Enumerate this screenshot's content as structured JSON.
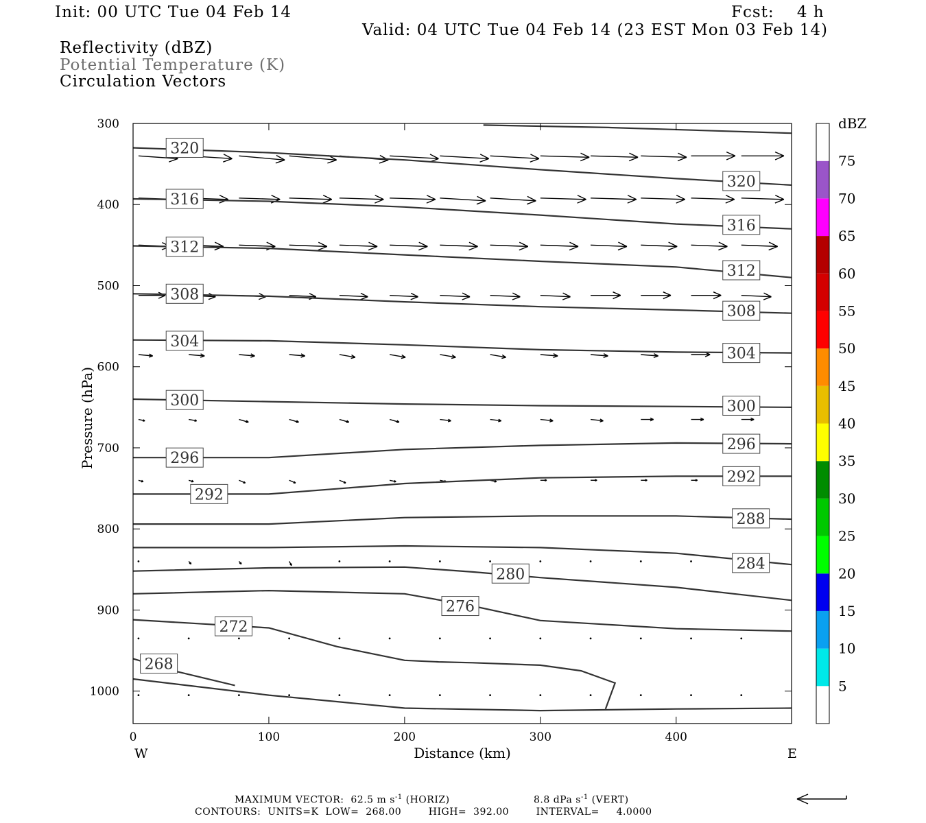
{
  "header": {
    "init": "Init: 00 UTC Tue 04 Feb 14",
    "fcst": "Fcst:    4 h",
    "valid": "Valid: 04 UTC Tue 04 Feb 14 (23 EST Mon 03 Feb 14)"
  },
  "legend_lines": [
    {
      "text": "Reflectivity (dBZ)",
      "color": "#000000"
    },
    {
      "text": "Potential Temperature (K)",
      "color": "#6e6e6e"
    },
    {
      "text": "Circulation Vectors",
      "color": "#000000"
    }
  ],
  "footer": {
    "max_vector_label": "MAXIMUM VECTOR:",
    "max_vector_horiz": "62.5 m s",
    "horiz_exp": "-1",
    "horiz_tag": "(HORIZ)",
    "max_vector_vert": "8.8 dPa s",
    "vert_exp": "-1",
    "vert_tag": "(VERT)",
    "contours": "CONTOURS:  UNITS=K  LOW=  268.00        HIGH=  392.00        INTERVAL=     4.0000"
  },
  "chart_data": {
    "type": "line",
    "title": "",
    "xlabel": "Distance (km)",
    "ylabel": "Pressure (hPa)",
    "xlim": [
      0,
      485
    ],
    "ylim": [
      300,
      1040
    ],
    "y_inverted": true,
    "x_ticks": [
      0,
      100,
      200,
      300,
      400
    ],
    "y_ticks": [
      300,
      400,
      500,
      600,
      700,
      800,
      900,
      1000
    ],
    "x_end_labels": {
      "left": "W",
      "right": "E"
    },
    "grid": false,
    "colorbar": {
      "unit": "dBZ",
      "levels": [
        5,
        10,
        15,
        20,
        25,
        30,
        35,
        40,
        45,
        50,
        55,
        60,
        65,
        70,
        75
      ],
      "colors": [
        "#ffffff",
        "#00e8e8",
        "#0aa0f0",
        "#0000f0",
        "#00ff00",
        "#00c800",
        "#008c00",
        "#ffff00",
        "#e8be00",
        "#ff8c00",
        "#ff0000",
        "#d40000",
        "#b40000",
        "#ff00ff",
        "#9a55c9",
        "#ffffff"
      ]
    },
    "series": [
      {
        "name": "320",
        "x": [
          0,
          100,
          200,
          300,
          400,
          485
        ],
        "y": [
          330,
          336,
          345,
          357,
          368,
          376
        ],
        "label_x": [
          38,
          448
        ],
        "label_y": [
          330,
          371
        ]
      },
      {
        "name": "316",
        "x": [
          0,
          100,
          200,
          300,
          400,
          485
        ],
        "y": [
          393,
          396,
          403,
          413,
          424,
          430
        ],
        "label_x": [
          38,
          448
        ],
        "label_y": [
          393,
          425
        ]
      },
      {
        "name": "312",
        "x": [
          0,
          100,
          200,
          300,
          400,
          485
        ],
        "y": [
          451,
          454,
          462,
          470,
          477,
          490
        ],
        "label_x": [
          38,
          448
        ],
        "label_y": [
          452,
          481
        ]
      },
      {
        "name": "308",
        "x": [
          0,
          100,
          200,
          300,
          400,
          485
        ],
        "y": [
          510,
          513,
          520,
          526,
          530,
          534
        ],
        "label_x": [
          38,
          448
        ],
        "label_y": [
          510,
          531
        ]
      },
      {
        "name": "304",
        "x": [
          0,
          100,
          200,
          300,
          400,
          485
        ],
        "y": [
          567,
          568,
          573,
          579,
          582,
          583
        ],
        "label_x": [
          38,
          448
        ],
        "label_y": [
          568,
          583
        ]
      },
      {
        "name": "300",
        "x": [
          0,
          100,
          200,
          300,
          400,
          485
        ],
        "y": [
          640,
          643,
          646,
          648,
          649,
          650
        ],
        "label_x": [
          38,
          448
        ],
        "label_y": [
          641,
          648
        ]
      },
      {
        "name": "296",
        "x": [
          0,
          100,
          200,
          300,
          400,
          485
        ],
        "y": [
          712,
          712,
          702,
          697,
          694,
          695
        ],
        "label_x": [
          38,
          448
        ],
        "label_y": [
          712,
          695
        ]
      },
      {
        "name": "292",
        "x": [
          0,
          100,
          200,
          300,
          400,
          485
        ],
        "y": [
          757,
          757,
          744,
          737,
          735,
          735
        ],
        "label_x": [
          56,
          448
        ],
        "label_y": [
          757,
          735
        ]
      },
      {
        "name": "288",
        "x": [
          0,
          100,
          200,
          300,
          400,
          485
        ],
        "y": [
          794,
          794,
          786,
          784,
          784,
          788
        ],
        "label_x": [
          455
        ],
        "label_y": [
          787
        ]
      },
      {
        "name": "284",
        "x": [
          0,
          100,
          200,
          300,
          400,
          485
        ],
        "y": [
          823,
          823,
          821,
          823,
          830,
          844
        ],
        "label_x": [
          455
        ],
        "label_y": [
          842
        ]
      },
      {
        "name": "280",
        "x": [
          0,
          100,
          200,
          250,
          300,
          400,
          485
        ],
        "y": [
          852,
          848,
          847,
          853,
          860,
          872,
          888
        ],
        "label_x": [
          278
        ],
        "label_y": [
          855
        ]
      },
      {
        "name": "276",
        "x": [
          0,
          100,
          200,
          250,
          300,
          400,
          485
        ],
        "y": [
          880,
          876,
          880,
          895,
          913,
          923,
          926
        ],
        "label_x": [
          241
        ],
        "label_y": [
          895
        ]
      },
      {
        "name": "272",
        "x": [
          0,
          100,
          150,
          200,
          225,
          250,
          300,
          330,
          355,
          348
        ],
        "y": [
          912,
          922,
          945,
          962,
          964,
          965,
          968,
          975,
          990,
          1022
        ],
        "label_x": [
          74
        ],
        "label_y": [
          920
        ]
      },
      {
        "name": "268",
        "x": [
          0,
          30,
          75
        ],
        "y": [
          960,
          975,
          993
        ],
        "label_x": [
          19
        ],
        "label_y": [
          966
        ]
      },
      {
        "name": "",
        "x": [
          0,
          100,
          200,
          300,
          400,
          485
        ],
        "y": [
          985,
          1005,
          1021,
          1024,
          1022,
          1021
        ],
        "label_x": [],
        "label_y": []
      },
      {
        "name": "",
        "x": [
          258,
          350,
          485
        ],
        "y": [
          302,
          305,
          312
        ],
        "label_x": [],
        "label_y": []
      }
    ],
    "vectors": {
      "x": [
        4,
        41,
        78,
        115,
        152,
        189,
        226,
        263,
        300,
        337,
        374,
        411,
        448
      ],
      "rows": [
        {
          "p": 340,
          "u": [
            50,
            55,
            58,
            60,
            62,
            62,
            62,
            62,
            62,
            60,
            58,
            56,
            54
          ],
          "w": [
            -2,
            -2,
            -3,
            -3,
            -3,
            -2,
            -2,
            -2,
            -1,
            -1,
            -1,
            0,
            0
          ]
        },
        {
          "p": 392,
          "u": [
            48,
            50,
            52,
            54,
            56,
            58,
            58,
            58,
            58,
            58,
            56,
            55,
            54
          ],
          "w": [
            -1,
            -1,
            -1,
            -1,
            -1,
            -1,
            -2,
            -2,
            -1,
            -1,
            -1,
            -1,
            -1
          ]
        },
        {
          "p": 450,
          "u": [
            40,
            44,
            46,
            48,
            48,
            48,
            48,
            48,
            48,
            46,
            46,
            46,
            46
          ],
          "w": [
            -1,
            -1,
            -1,
            -1,
            -1,
            -1,
            -1,
            -1,
            -1,
            -1,
            -1,
            -1,
            -1
          ]
        },
        {
          "p": 512,
          "u": [
            34,
            34,
            34,
            34,
            36,
            36,
            38,
            38,
            38,
            38,
            38,
            38,
            38
          ],
          "w": [
            0,
            -1,
            -1,
            -1,
            -1,
            -1,
            -1,
            -1,
            -1,
            0,
            0,
            0,
            -1
          ]
        },
        {
          "p": 585,
          "u": [
            18,
            20,
            20,
            20,
            20,
            20,
            20,
            20,
            22,
            22,
            22,
            24,
            24
          ],
          "w": [
            -1,
            -1,
            -1,
            -1,
            -2,
            -2,
            -2,
            -2,
            -1,
            -1,
            -1,
            0,
            0
          ]
        },
        {
          "p": 665,
          "u": [
            8,
            10,
            12,
            12,
            12,
            12,
            14,
            14,
            16,
            16,
            16,
            16,
            16
          ],
          "w": [
            -1,
            -1,
            -2,
            -2,
            -2,
            -2,
            -1,
            -1,
            -1,
            -1,
            0,
            0,
            0
          ]
        },
        {
          "p": 740,
          "u": [
            6,
            6,
            8,
            8,
            8,
            8,
            8,
            8,
            8,
            8,
            8,
            8,
            8
          ],
          "w": [
            -1,
            -1,
            -2,
            -2,
            -2,
            -1,
            -1,
            -1,
            0,
            0,
            0,
            0,
            0
          ]
        },
        {
          "p": 840,
          "u": [
            2,
            3,
            3,
            3,
            2,
            2,
            2,
            2,
            2,
            2,
            2,
            2,
            2
          ],
          "w": [
            -2,
            -2,
            -2,
            -3,
            -4,
            -3,
            -2,
            -2,
            -1,
            -1,
            -1,
            -1,
            -1
          ]
        },
        {
          "p": 935,
          "u": [
            0,
            1,
            1,
            1,
            1,
            1,
            1,
            1,
            1,
            1,
            1,
            1,
            1
          ],
          "w": [
            -1,
            -2,
            -2,
            -2,
            -2,
            -1,
            -1,
            -1,
            -1,
            -1,
            -1,
            -1,
            -1
          ]
        },
        {
          "p": 1005,
          "u": [
            0,
            1,
            1,
            1,
            1,
            1,
            1,
            1,
            1,
            1,
            1,
            1,
            1
          ],
          "w": [
            -1,
            -1,
            -1,
            -1,
            -1,
            -1,
            -1,
            -1,
            -1,
            -1,
            -1,
            -1,
            -1
          ]
        }
      ]
    }
  }
}
